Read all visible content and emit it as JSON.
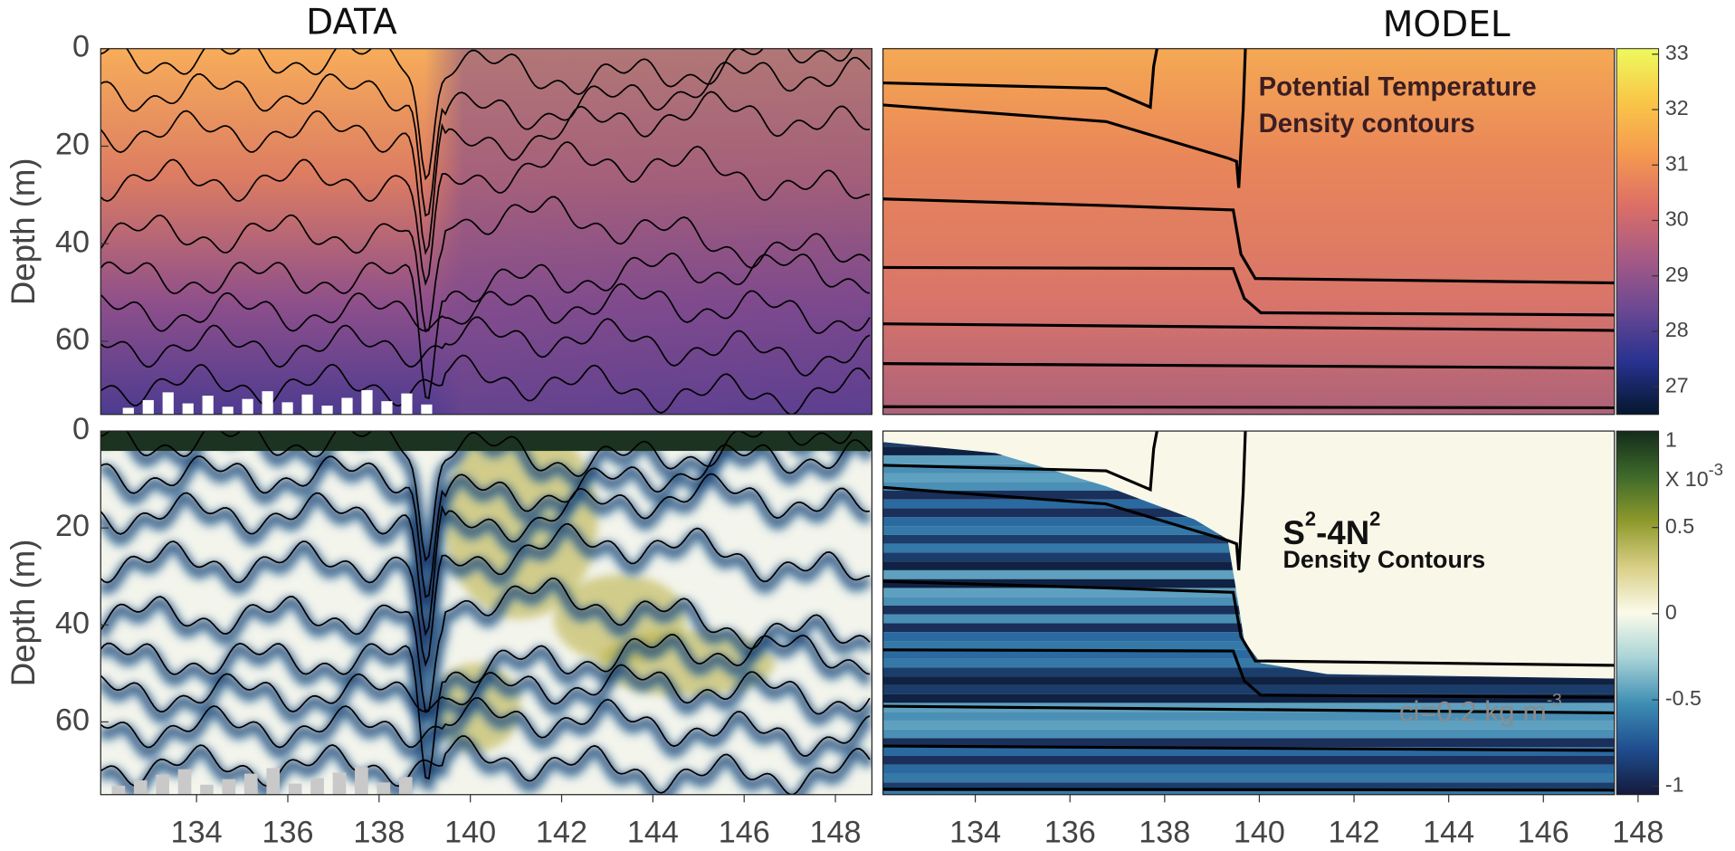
{
  "chart_data": [
    {
      "type": "heatmap",
      "title": "DATA",
      "ylabel": "Depth (m)",
      "xlim": [
        131.9,
        148.8
      ],
      "ylim": [
        0,
        75
      ],
      "yticks": [
        0,
        20,
        40,
        60
      ],
      "y_inverted": true
    },
    {
      "type": "heatmap",
      "title": "MODEL",
      "xlim": [
        132.05,
        147.5
      ],
      "ylim": [
        0,
        75
      ],
      "y_inverted": true,
      "annotations": [
        {
          "parts": [
            "Potential Temperature"
          ]
        },
        {
          "parts": [
            "Density contours"
          ]
        }
      ],
      "colorbar": {
        "lim": [
          26.5,
          33.1
        ],
        "ticks": [
          27,
          28,
          29,
          30,
          31,
          32,
          33
        ],
        "colormap": [
          "#05172e",
          "#27328f",
          "#6b4893",
          "#a75a85",
          "#dc6f66",
          "#f59a4f",
          "#f9c748",
          "#eefa5c"
        ]
      }
    },
    {
      "type": "heatmap",
      "ylabel": "Depth (m)",
      "xlim": [
        131.9,
        148.8
      ],
      "ylim": [
        0,
        75
      ],
      "yticks": [
        0,
        20,
        40,
        60
      ],
      "y_inverted": true,
      "xticks": [
        134,
        136,
        138,
        140,
        142,
        144,
        146,
        148
      ]
    },
    {
      "type": "heatmap",
      "xlim": [
        132.05,
        147.5
      ],
      "ylim": [
        0,
        75
      ],
      "y_inverted": true,
      "xticks": [
        134,
        136,
        138,
        140,
        142,
        144,
        146,
        148
      ],
      "annotations": [
        {
          "parts": [
            "S",
            "2",
            "-4N",
            "2"
          ]
        },
        {
          "parts": [
            "Density Contours"
          ]
        },
        {
          "parts": [
            "ci=0.2 kg m",
            "-3"
          ]
        }
      ],
      "colorbar": {
        "lim": [
          -1.05,
          1.06
        ],
        "ticks": [
          -1,
          -0.5,
          0,
          0.5,
          1
        ],
        "multiplier": [
          "X 10",
          "-3"
        ],
        "colormap": [
          "#141a3c",
          "#1f4d8f",
          "#3d8db3",
          "#a8d3d6",
          "#fbfbea",
          "#d9cf86",
          "#8f9a2c",
          "#3f6a2a",
          "#132b1b"
        ]
      }
    }
  ]
}
